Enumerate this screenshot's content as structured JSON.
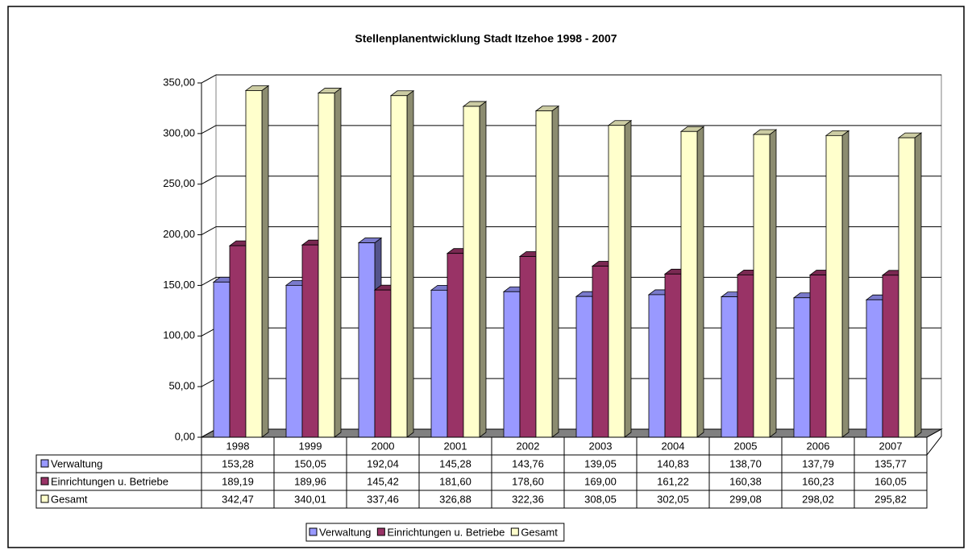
{
  "chart_data": {
    "type": "bar3d",
    "title": "Stellenplanentwicklung Stadt Itzehoe 1998 - 2007",
    "categories": [
      "1998",
      "1999",
      "2000",
      "2001",
      "2002",
      "2003",
      "2004",
      "2005",
      "2006",
      "2007"
    ],
    "series": [
      {
        "name": "Verwaltung",
        "color": "#9999ff",
        "values": [
          153.28,
          150.05,
          192.04,
          145.28,
          143.76,
          139.05,
          140.83,
          138.7,
          137.79,
          135.77
        ],
        "value_labels": [
          "153,28",
          "150,05",
          "192,04",
          "145,28",
          "143,76",
          "139,05",
          "140,83",
          "138,70",
          "137,79",
          "135,77"
        ]
      },
      {
        "name": "Einrichtungen u. Betriebe",
        "color": "#993366",
        "values": [
          189.19,
          189.96,
          145.42,
          181.6,
          178.6,
          169.0,
          161.22,
          160.38,
          160.23,
          160.05
        ],
        "value_labels": [
          "189,19",
          "189,96",
          "145,42",
          "181,60",
          "178,60",
          "169,00",
          "161,22",
          "160,38",
          "160,23",
          "160,05"
        ]
      },
      {
        "name": "Gesamt",
        "color": "#ffffcc",
        "values": [
          342.47,
          340.01,
          337.46,
          326.88,
          322.36,
          308.05,
          302.05,
          299.08,
          298.02,
          295.82
        ],
        "value_labels": [
          "342,47",
          "340,01",
          "337,46",
          "326,88",
          "322,36",
          "308,05",
          "302,05",
          "299,08",
          "298,02",
          "295,82"
        ]
      }
    ],
    "ylim": [
      0,
      350
    ],
    "yticks": [
      {
        "value": 0,
        "label": "0,00"
      },
      {
        "value": 50,
        "label": "50,00"
      },
      {
        "value": 100,
        "label": "100,00"
      },
      {
        "value": 150,
        "label": "150,00"
      },
      {
        "value": 200,
        "label": "200,00"
      },
      {
        "value": 250,
        "label": "250,00"
      },
      {
        "value": 300,
        "label": "300,00"
      },
      {
        "value": 350,
        "label": "350,00"
      }
    ],
    "grid": true,
    "legend": "bottom"
  }
}
